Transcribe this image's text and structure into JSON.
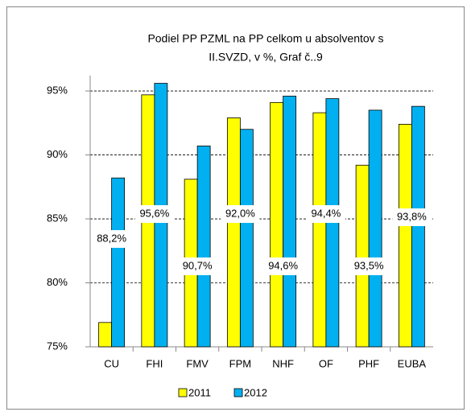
{
  "chart_data": {
    "type": "bar",
    "title": [
      "Podiel  PP   PZML  na PP celkom  u absolventov s",
      "II.SVZD, v %, Graf č..9"
    ],
    "categories": [
      "CU",
      "FHI",
      "FMV",
      "FPM",
      "NHF",
      "OF",
      "PHF",
      "EUBA"
    ],
    "series": [
      {
        "name": "2011",
        "color": "#ffff00",
        "values": [
          76.9,
          94.7,
          88.1,
          92.9,
          94.1,
          93.3,
          89.2,
          92.4
        ]
      },
      {
        "name": "2012",
        "color": "#00b0f0",
        "values": [
          88.2,
          95.6,
          90.7,
          92.0,
          94.6,
          94.4,
          93.5,
          93.8
        ],
        "value_labels": [
          "88,2%",
          "95,6%",
          "90,7%",
          "92,0%",
          "94,6%",
          "94,4%",
          "93,5%",
          "93,8%"
        ]
      }
    ],
    "ylim": [
      75,
      96.2
    ],
    "yticks": [
      {
        "value": 75,
        "label": "75%"
      },
      {
        "value": 80,
        "label": "80%"
      },
      {
        "value": 85,
        "label": "85%"
      },
      {
        "value": 90,
        "label": "90%"
      },
      {
        "value": 95,
        "label": "95%"
      }
    ],
    "grid": true,
    "legend": "bottom"
  }
}
